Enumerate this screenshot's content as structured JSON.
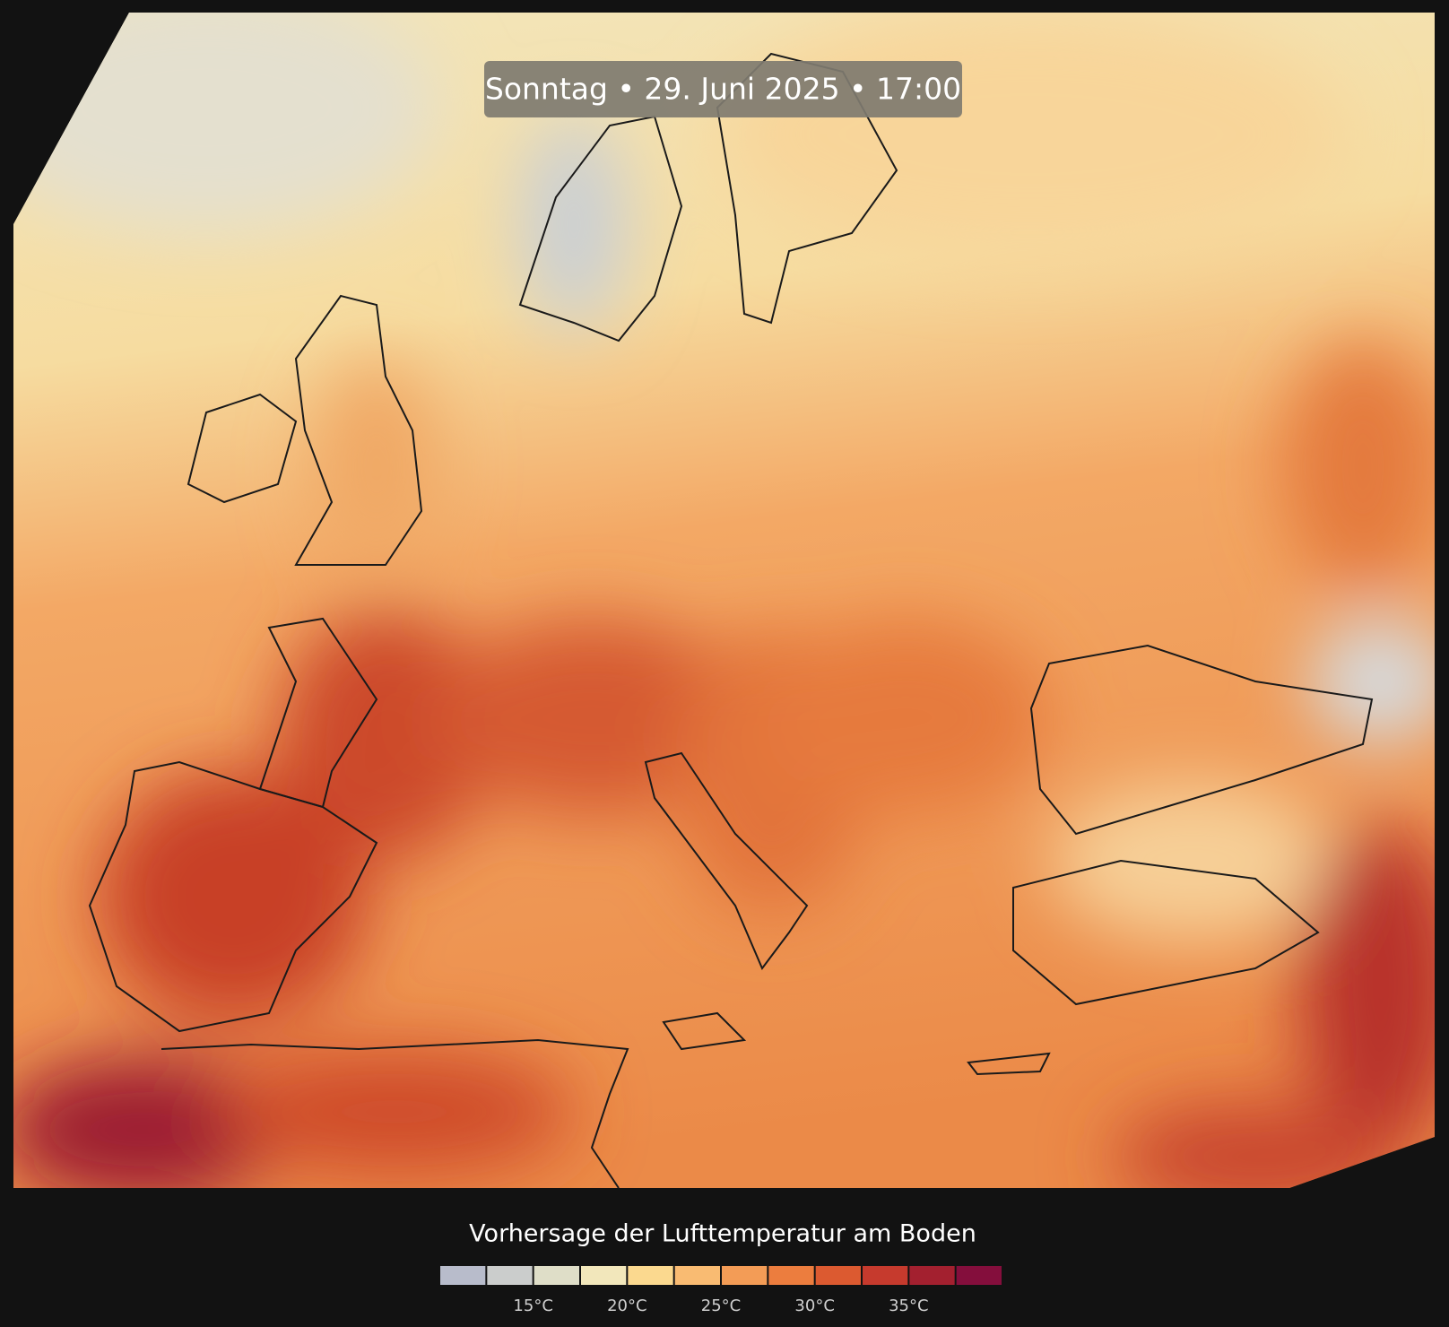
{
  "header": {
    "title": "Sonntag • 29. Juni 2025 • 17:00"
  },
  "legend": {
    "title": "Vorhersage der Lufttemperatur am Boden",
    "range": [
      10,
      40
    ],
    "colors": [
      "#b8bccb",
      "#cbcdcc",
      "#dfdec8",
      "#f2e7bb",
      "#fbd98f",
      "#f9bb72",
      "#f39c56",
      "#ec7d3e",
      "#dc5a30",
      "#c63a2d",
      "#a3202f",
      "#840e3c"
    ],
    "ticks": [
      {
        "value": 15,
        "label": "15°C"
      },
      {
        "value": 20,
        "label": "20°C"
      },
      {
        "value": 25,
        "label": "25°C"
      },
      {
        "value": 30,
        "label": "30°C"
      },
      {
        "value": 35,
        "label": "35°C"
      }
    ]
  }
}
